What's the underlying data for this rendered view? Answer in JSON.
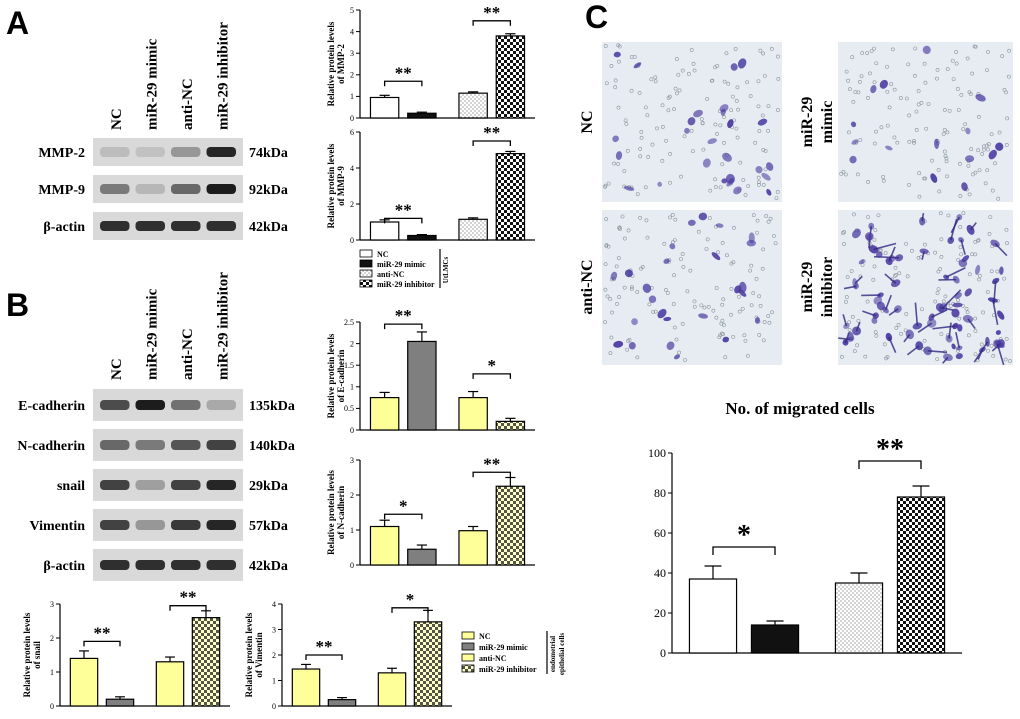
{
  "colors": {
    "blot_bg": "#d9d9d9",
    "band": "#1c1c1c",
    "yellow": "#ffff99",
    "dark_gray": "#7f7f7f",
    "stain": "#4a3aa0",
    "field_bg": "#e6ecf2"
  },
  "panels": {
    "a": {
      "letter": "A",
      "lanes": [
        "NC",
        "miR-29 mimic",
        "anti-NC",
        "miR-29 inhibitor"
      ],
      "blots": [
        {
          "name": "MMP-2",
          "kda": "74kDa",
          "intensity": [
            0.15,
            0.12,
            0.35,
            0.95
          ]
        },
        {
          "name": "MMP-9",
          "kda": "92kDa",
          "intensity": [
            0.5,
            0.18,
            0.6,
            1.0
          ]
        },
        {
          "name": "β-actin",
          "kda": "42kDa",
          "intensity": [
            0.9,
            0.9,
            0.9,
            0.9
          ]
        }
      ],
      "legend": {
        "items": [
          "NC",
          "miR-29 mimic",
          "anti-NC",
          "miR-29 inhibitor"
        ],
        "group_label": "UtLMCs"
      }
    },
    "b": {
      "letter": "B",
      "lanes": [
        "NC",
        "miR-29 mimic",
        "anti-NC",
        "miR-29 inhibitor"
      ],
      "blots": [
        {
          "name": "E-cadherin",
          "kda": "135kDa",
          "intensity": [
            0.75,
            1.0,
            0.55,
            0.25
          ]
        },
        {
          "name": "N-cadherin",
          "kda": "140kDa",
          "intensity": [
            0.6,
            0.5,
            0.7,
            0.8
          ]
        },
        {
          "name": "snail",
          "kda": "29kDa",
          "intensity": [
            0.8,
            0.3,
            0.8,
            0.95
          ]
        },
        {
          "name": "Vimentin",
          "kda": "57kDa",
          "intensity": [
            0.8,
            0.35,
            0.85,
            0.95
          ]
        },
        {
          "name": "β-actin",
          "kda": "42kDa",
          "intensity": [
            0.9,
            0.9,
            0.9,
            0.9
          ]
        }
      ],
      "legend": {
        "items": [
          "NC",
          "miR-29 mimic",
          "anti-NC",
          "miR-29 inhibitor"
        ],
        "group_label": "endometrial epithelial cells"
      }
    },
    "c": {
      "letter": "C",
      "images": [
        {
          "label": "NC",
          "density": 0.3
        },
        {
          "label": "miR-29 mimic",
          "density": 0.12
        },
        {
          "label": "anti-NC",
          "density": 0.28
        },
        {
          "label": "miR-29 inhibitor",
          "density": 1.0
        }
      ],
      "chart_title": "No. of migrated cells"
    }
  },
  "chart_data": [
    {
      "type": "bar",
      "id": "mmp2",
      "ylabel": "Relative protein levels of MMP-2",
      "ylim": [
        0,
        5
      ],
      "yticks": [
        0,
        1,
        2,
        3,
        4,
        5
      ],
      "categories": [
        "NC",
        "miR-29 mimic",
        "anti-NC",
        "miR-29 inhibitor"
      ],
      "values": [
        0.95,
        0.22,
        1.15,
        3.8
      ],
      "errors": [
        0.1,
        0.05,
        0.06,
        0.1
      ],
      "fills": [
        "white",
        "black",
        "dots",
        "checker"
      ],
      "significance": [
        {
          "from": 0,
          "to": 1,
          "label": "**",
          "level": 1.7
        },
        {
          "from": 2,
          "to": 3,
          "label": "**",
          "level": 4.5
        }
      ]
    },
    {
      "type": "bar",
      "id": "mmp9",
      "ylabel": "Relative protein levels of MMP-9",
      "ylim": [
        0,
        6
      ],
      "yticks": [
        0,
        2,
        4,
        6
      ],
      "categories": [
        "NC",
        "miR-29 mimic",
        "anti-NC",
        "miR-29 inhibitor"
      ],
      "values": [
        1.0,
        0.25,
        1.15,
        4.8
      ],
      "errors": [
        0.12,
        0.05,
        0.08,
        0.12
      ],
      "fills": [
        "white",
        "black",
        "dots",
        "checker"
      ],
      "significance": [
        {
          "from": 0,
          "to": 1,
          "label": "**",
          "level": 1.2
        },
        {
          "from": 2,
          "to": 3,
          "label": "**",
          "level": 5.5
        }
      ]
    },
    {
      "type": "bar",
      "id": "ecad",
      "ylabel": "Relative protein levels of E-cadherin",
      "ylim": [
        0,
        2.5
      ],
      "yticks": [
        0.0,
        0.5,
        1.0,
        1.5,
        2.0,
        2.5
      ],
      "categories": [
        "NC",
        "miR-29 mimic",
        "anti-NC",
        "miR-29 inhibitor"
      ],
      "values": [
        0.75,
        2.05,
        0.75,
        0.2
      ],
      "errors": [
        0.12,
        0.22,
        0.14,
        0.07
      ],
      "fills": [
        "yellow",
        "gray",
        "yellow",
        "sparse"
      ],
      "significance": [
        {
          "from": 0,
          "to": 1,
          "label": "**",
          "level": 2.45
        },
        {
          "from": 2,
          "to": 3,
          "label": "*",
          "level": 1.3
        }
      ]
    },
    {
      "type": "bar",
      "id": "ncad",
      "ylabel": "Relative protein levels of N-cadherin",
      "ylim": [
        0,
        3
      ],
      "yticks": [
        0,
        1,
        2,
        3
      ],
      "categories": [
        "NC",
        "miR-29 mimic",
        "anti-NC",
        "miR-29 inhibitor"
      ],
      "values": [
        1.1,
        0.45,
        0.98,
        2.25
      ],
      "errors": [
        0.18,
        0.12,
        0.12,
        0.25
      ],
      "fills": [
        "yellow",
        "gray",
        "yellow",
        "sparse"
      ],
      "significance": [
        {
          "from": 0,
          "to": 1,
          "label": "*",
          "level": 1.45
        },
        {
          "from": 2,
          "to": 3,
          "label": "**",
          "level": 2.65
        }
      ]
    },
    {
      "type": "bar",
      "id": "snail",
      "ylabel": "Relative protein levels of snail",
      "ylim": [
        0,
        3
      ],
      "yticks": [
        0,
        1,
        2,
        3
      ],
      "categories": [
        "NC",
        "miR-29 mimic",
        "anti-NC",
        "miR-29 inhibitor"
      ],
      "values": [
        1.4,
        0.2,
        1.3,
        2.6
      ],
      "errors": [
        0.22,
        0.07,
        0.14,
        0.2
      ],
      "fills": [
        "yellow",
        "gray",
        "yellow",
        "sparse"
      ],
      "significance": [
        {
          "from": 0,
          "to": 1,
          "label": "**",
          "level": 1.9
        },
        {
          "from": 2,
          "to": 3,
          "label": "**",
          "level": 2.95
        }
      ]
    },
    {
      "type": "bar",
      "id": "vim",
      "ylabel": "Relative protein levels of Vimentin",
      "ylim": [
        0,
        4
      ],
      "yticks": [
        0,
        1,
        2,
        3,
        4
      ],
      "categories": [
        "NC",
        "miR-29 mimic",
        "anti-NC",
        "miR-29 inhibitor"
      ],
      "values": [
        1.45,
        0.25,
        1.3,
        3.3
      ],
      "errors": [
        0.18,
        0.08,
        0.18,
        0.45
      ],
      "fills": [
        "yellow",
        "gray",
        "yellow",
        "sparse"
      ],
      "significance": [
        {
          "from": 0,
          "to": 1,
          "label": "**",
          "level": 2.0
        },
        {
          "from": 2,
          "to": 3,
          "label": "*",
          "level": 3.85
        }
      ]
    },
    {
      "type": "bar",
      "id": "migr",
      "title": "No. of migrated cells",
      "ylim": [
        0,
        100
      ],
      "yticks": [
        0,
        20,
        40,
        60,
        80,
        100
      ],
      "categories": [
        "NC",
        "miR-29 mimic",
        "anti-NC",
        "miR-29 inhibitor"
      ],
      "values": [
        37,
        14,
        35,
        78
      ],
      "errors": [
        6.5,
        2.0,
        5.0,
        5.5
      ],
      "fills": [
        "white",
        "black",
        "dots",
        "checker"
      ],
      "significance": [
        {
          "from": 0,
          "to": 1,
          "label": "*",
          "level": 53
        },
        {
          "from": 2,
          "to": 3,
          "label": "**",
          "level": 96
        }
      ]
    }
  ]
}
